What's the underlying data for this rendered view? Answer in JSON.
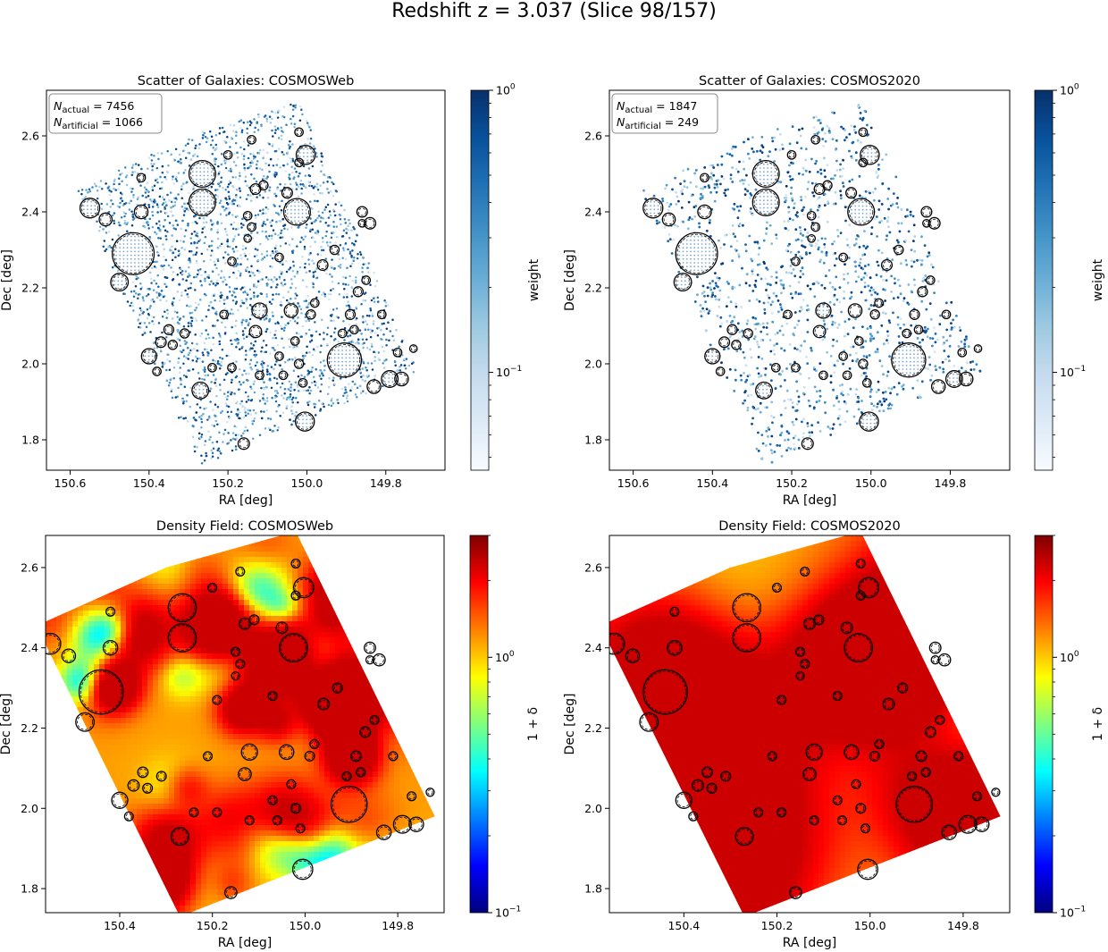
{
  "suptitle": "Redshift z = 3.037  (Slice 98/157)",
  "colors": {
    "blues": [
      "#f7fbff",
      "#deebf7",
      "#c6dbef",
      "#9ecae1",
      "#6baed6",
      "#4292c6",
      "#2171b5",
      "#08519c",
      "#08306b"
    ],
    "jet": [
      "#00007f",
      "#0000ff",
      "#007fff",
      "#00ffff",
      "#7fff7f",
      "#ffff00",
      "#ff7f00",
      "#ff0000",
      "#7f0000"
    ],
    "mask": "#000000"
  },
  "chart_data": [
    {
      "type": "scatter",
      "title": "Scatter of Galaxies: COSMOSWeb",
      "xlabel": "RA [deg]",
      "ylabel": "Dec [deg]",
      "xlim": [
        150.66,
        149.65
      ],
      "ylim": [
        1.72,
        2.72
      ],
      "xticks": [
        "150.6",
        "150.4",
        "150.2",
        "150.0",
        "149.8"
      ],
      "yticks": [
        "1.8",
        "2.0",
        "2.2",
        "2.4",
        "2.6"
      ],
      "annotation": {
        "n_actual_label": "N",
        "n_actual_sub": "actual",
        "n_actual": "7456",
        "n_art_label": "N",
        "n_art_sub": "artificial",
        "n_art": "1066"
      },
      "colorbar": {
        "label": "weight",
        "scale": "log",
        "range": [
          0.045,
          1
        ],
        "ticks": [
          {
            "base": "10",
            "exp": "0",
            "value": 1
          },
          {
            "base": "10",
            "exp": "−1",
            "value": 0.1
          }
        ],
        "cmap": "blues"
      },
      "footprint": [
        [
          150.58,
          2.455
        ],
        [
          150.3,
          2.6
        ],
        [
          150.02,
          2.69
        ],
        [
          149.72,
          1.98
        ],
        [
          150.27,
          1.73
        ]
      ],
      "n_points_shown": 2600,
      "masks": [
        [
          150.44,
          2.29,
          0.055
        ],
        [
          150.265,
          2.5,
          0.035
        ],
        [
          150.265,
          2.425,
          0.035
        ],
        [
          150.025,
          2.4,
          0.035
        ],
        [
          149.905,
          2.01,
          0.045
        ],
        [
          150.55,
          2.41,
          0.026
        ],
        [
          150.475,
          2.215,
          0.023
        ],
        [
          150.003,
          2.55,
          0.025
        ],
        [
          150.27,
          1.93,
          0.022
        ],
        [
          150.005,
          1.848,
          0.025
        ],
        [
          150.37,
          2.057,
          0.014
        ],
        [
          150.4,
          2.02,
          0.02
        ],
        [
          150.51,
          2.38,
          0.017
        ],
        [
          150.42,
          2.4,
          0.018
        ],
        [
          150.12,
          2.14,
          0.02
        ],
        [
          150.13,
          2.085,
          0.016
        ],
        [
          150.04,
          2.14,
          0.018
        ],
        [
          149.83,
          1.94,
          0.018
        ],
        [
          149.79,
          1.96,
          0.022
        ],
        [
          149.76,
          1.96,
          0.018
        ],
        [
          149.84,
          2.37,
          0.015
        ],
        [
          149.86,
          2.4,
          0.014
        ],
        [
          150.16,
          1.79,
          0.015
        ],
        [
          150.42,
          2.49,
          0.011
        ],
        [
          150.19,
          2.27,
          0.011
        ],
        [
          150.13,
          2.46,
          0.014
        ],
        [
          150.11,
          2.47,
          0.012
        ],
        [
          150.15,
          2.39,
          0.011
        ],
        [
          150.14,
          2.36,
          0.011
        ],
        [
          150.07,
          2.28,
          0.011
        ],
        [
          150.05,
          2.45,
          0.014
        ],
        [
          150.07,
          2.02,
          0.011
        ],
        [
          150.06,
          1.97,
          0.011
        ],
        [
          150.02,
          2.0,
          0.012
        ],
        [
          149.96,
          2.26,
          0.014
        ],
        [
          149.89,
          2.13,
          0.013
        ],
        [
          149.87,
          2.19,
          0.013
        ],
        [
          149.91,
          2.08,
          0.011
        ],
        [
          149.77,
          2.03,
          0.011
        ],
        [
          150.35,
          2.09,
          0.013
        ],
        [
          150.31,
          2.08,
          0.012
        ],
        [
          150.34,
          2.05,
          0.012
        ],
        [
          150.38,
          1.98,
          0.011
        ],
        [
          150.21,
          2.13,
          0.011
        ],
        [
          150.24,
          1.99,
          0.011
        ],
        [
          150.19,
          1.99,
          0.011
        ],
        [
          150.12,
          1.97,
          0.011
        ],
        [
          150.03,
          2.06,
          0.011
        ],
        [
          149.98,
          2.16,
          0.011
        ],
        [
          149.88,
          2.09,
          0.011
        ],
        [
          149.85,
          2.22,
          0.011
        ],
        [
          150.14,
          2.59,
          0.011
        ],
        [
          150.02,
          2.61,
          0.011
        ],
        [
          150.02,
          2.53,
          0.011
        ],
        [
          150.15,
          2.33,
          0.01
        ],
        [
          150.2,
          2.55,
          0.011
        ],
        [
          149.93,
          2.3,
          0.012
        ],
        [
          149.99,
          2.13,
          0.012
        ],
        [
          150.01,
          1.95,
          0.011
        ],
        [
          149.73,
          2.04,
          0.01
        ],
        [
          149.81,
          2.13,
          0.011
        ],
        [
          149.86,
          2.37,
          0.01
        ]
      ]
    },
    {
      "type": "scatter",
      "title": "Scatter of Galaxies: COSMOS2020",
      "xlabel": "RA [deg]",
      "ylabel": "Dec [deg]",
      "xlim": [
        150.66,
        149.65
      ],
      "ylim": [
        1.72,
        2.72
      ],
      "xticks": [
        "150.6",
        "150.4",
        "150.2",
        "150.0",
        "149.8"
      ],
      "yticks": [
        "1.8",
        "2.0",
        "2.2",
        "2.4",
        "2.6"
      ],
      "annotation": {
        "n_actual_label": "N",
        "n_actual_sub": "actual",
        "n_actual": "1847",
        "n_art_label": "N",
        "n_art_sub": "artificial",
        "n_art": "249"
      },
      "colorbar": {
        "label": "weight",
        "scale": "log",
        "range": [
          0.045,
          1
        ],
        "ticks": [
          {
            "base": "10",
            "exp": "0",
            "value": 1
          },
          {
            "base": "10",
            "exp": "−1",
            "value": 0.1
          }
        ],
        "cmap": "blues"
      },
      "footprint": [
        [
          150.58,
          2.455
        ],
        [
          150.3,
          2.6
        ],
        [
          150.02,
          2.69
        ],
        [
          149.72,
          1.98
        ],
        [
          150.27,
          1.73
        ]
      ],
      "n_points_shown": 1300,
      "masks": "same"
    },
    {
      "type": "heatmap",
      "title": "Density Field: COSMOSWeb",
      "xlabel": "RA [deg]",
      "ylabel": "Dec [deg]",
      "xlim": [
        150.56,
        149.7
      ],
      "ylim": [
        1.74,
        2.68
      ],
      "xticks": [
        "150.4",
        "150.2",
        "150.0",
        "149.8"
      ],
      "yticks": [
        "1.8",
        "2.0",
        "2.2",
        "2.4",
        "2.6"
      ],
      "colorbar": {
        "label": "1 + δ",
        "scale": "log",
        "range": [
          0.1,
          3.0
        ],
        "ticks": [
          {
            "base": "10",
            "exp": "0",
            "value": 1
          },
          {
            "base": "10",
            "exp": "−1",
            "value": 0.1
          }
        ],
        "cmap": "jet"
      },
      "footprint": [
        [
          150.58,
          2.455
        ],
        [
          150.3,
          2.6
        ],
        [
          150.02,
          2.69
        ],
        [
          149.72,
          1.98
        ],
        [
          150.27,
          1.73
        ]
      ],
      "smoothing": "fine",
      "masks": "same"
    },
    {
      "type": "heatmap",
      "title": "Density Field: COSMOS2020",
      "xlabel": "RA [deg]",
      "ylabel": "Dec [deg]",
      "xlim": [
        150.56,
        149.7
      ],
      "ylim": [
        1.74,
        2.68
      ],
      "xticks": [
        "150.4",
        "150.2",
        "150.0",
        "149.8"
      ],
      "yticks": [
        "1.8",
        "2.0",
        "2.2",
        "2.4",
        "2.6"
      ],
      "colorbar": {
        "label": "1 + δ",
        "scale": "log",
        "range": [
          0.1,
          3.0
        ],
        "ticks": [
          {
            "base": "10",
            "exp": "0",
            "value": 1
          },
          {
            "base": "10",
            "exp": "−1",
            "value": 0.1
          }
        ],
        "cmap": "jet"
      },
      "footprint": [
        [
          150.58,
          2.455
        ],
        [
          150.3,
          2.6
        ],
        [
          150.02,
          2.69
        ],
        [
          149.72,
          1.98
        ],
        [
          150.27,
          1.73
        ]
      ],
      "smoothing": "coarse",
      "masks": "same"
    }
  ]
}
